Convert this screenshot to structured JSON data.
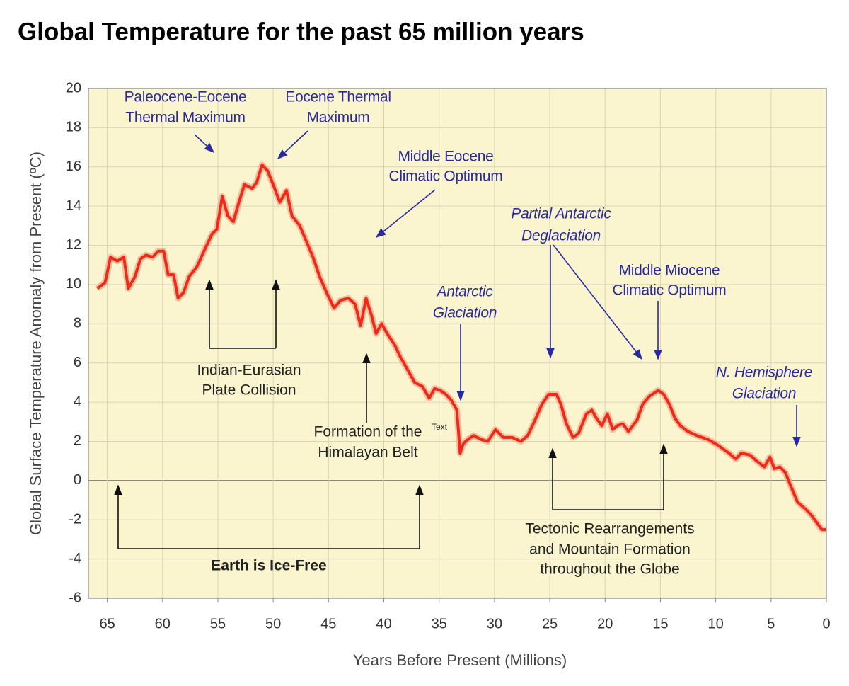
{
  "chart_data": {
    "type": "line",
    "title": "Global Temperature for the past 65 million years",
    "xlabel": "Years Before Present (Millions)",
    "ylabel": "Global Surface Temperature Anomaly from Present (ºC)",
    "color": "#ee2a1a",
    "band_color": "#eeaa88",
    "grid": true,
    "xlim": [
      66.7,
      0
    ],
    "xticks": [
      65,
      60,
      55,
      50,
      45,
      40,
      35,
      30,
      25,
      20,
      15,
      10,
      5,
      0
    ],
    "ylim": [
      -6,
      20
    ],
    "yticks": [
      -6,
      -4,
      -2,
      0,
      2,
      4,
      6,
      8,
      10,
      12,
      14,
      16,
      18,
      20
    ],
    "x": [
      65.9,
      65.2,
      64.7,
      64.1,
      63.5,
      63.1,
      62.5,
      62.0,
      61.5,
      60.9,
      60.4,
      59.9,
      59.5,
      59.0,
      58.6,
      58.1,
      57.6,
      56.9,
      56.1,
      55.5,
      55.1,
      54.6,
      54.1,
      53.6,
      53.1,
      52.6,
      51.9,
      51.5,
      51.0,
      50.5,
      50.0,
      49.4,
      48.8,
      48.3,
      47.6,
      47.0,
      46.4,
      45.8,
      45.1,
      44.5,
      43.9,
      43.2,
      42.6,
      42.1,
      41.6,
      41.1,
      40.7,
      40.2,
      39.7,
      39.0,
      38.5,
      37.9,
      37.2,
      36.5,
      35.9,
      35.4,
      34.9,
      34.4,
      33.9,
      33.4,
      33.1,
      32.8,
      32.4,
      31.9,
      31.2,
      30.6,
      29.9,
      29.2,
      28.4,
      27.6,
      27.0,
      26.4,
      25.7,
      25.1,
      24.4,
      24.0,
      23.5,
      22.9,
      22.4,
      21.7,
      21.2,
      20.8,
      20.3,
      19.8,
      19.3,
      18.9,
      18.4,
      17.9,
      17.1,
      16.6,
      16.0,
      15.2,
      14.7,
      14.2,
      13.7,
      13.2,
      12.5,
      11.7,
      10.7,
      9.8,
      8.8,
      8.2,
      7.7,
      6.9,
      6.3,
      5.6,
      5.1,
      4.7,
      4.2,
      3.7,
      3.2,
      2.6,
      1.8,
      1.3,
      0.8,
      0.4,
      0.0
    ],
    "values": [
      9.8,
      10.1,
      11.4,
      11.2,
      11.4,
      9.8,
      10.4,
      11.3,
      11.5,
      11.4,
      11.7,
      11.7,
      10.5,
      10.5,
      9.3,
      9.6,
      10.4,
      10.9,
      11.9,
      12.6,
      12.8,
      14.5,
      13.5,
      13.2,
      14.2,
      15.1,
      14.9,
      15.2,
      16.1,
      15.8,
      15.1,
      14.2,
      14.8,
      13.5,
      13.0,
      12.2,
      11.4,
      10.4,
      9.5,
      8.8,
      9.2,
      9.3,
      9.0,
      7.9,
      9.3,
      8.4,
      7.5,
      8.0,
      7.5,
      6.9,
      6.3,
      5.7,
      5.0,
      4.8,
      4.2,
      4.7,
      4.6,
      4.4,
      4.1,
      3.6,
      1.4,
      1.9,
      2.1,
      2.3,
      2.1,
      2.0,
      2.6,
      2.2,
      2.2,
      2.0,
      2.3,
      3.0,
      3.9,
      4.4,
      4.4,
      3.9,
      2.9,
      2.2,
      2.4,
      3.4,
      3.6,
      3.2,
      2.8,
      3.4,
      2.6,
      2.8,
      2.9,
      2.5,
      3.1,
      3.9,
      4.3,
      4.6,
      4.4,
      3.9,
      3.2,
      2.8,
      2.5,
      2.3,
      2.1,
      1.8,
      1.4,
      1.1,
      1.4,
      1.3,
      1.0,
      0.7,
      1.2,
      0.6,
      0.7,
      0.4,
      -0.3,
      -1.1,
      -1.5,
      -1.8,
      -2.2,
      -2.5,
      -2.5
    ],
    "annotations": [
      {
        "lines": [
          "Paleocene-Eocene",
          "Thermal Maximum"
        ]
      },
      {
        "lines": [
          "Eocene Thermal",
          "Maximum"
        ]
      },
      {
        "lines": [
          "Middle Eocene",
          "Climatic Optimum"
        ]
      },
      {
        "lines": [
          "Partial Antarctic",
          "Deglaciation"
        ]
      },
      {
        "lines": [
          "Middle Miocene",
          "Climatic Optimum"
        ]
      },
      {
        "lines": [
          "Antarctic",
          "Glaciation"
        ]
      },
      {
        "lines": [
          "N. Hemisphere",
          "Glaciation"
        ]
      },
      {
        "lines": [
          "Indian-Eurasian",
          "Plate Collision"
        ]
      },
      {
        "lines": [
          "Formation of the",
          "Himalayan Belt"
        ],
        "mark": "Text"
      },
      {
        "lines": [
          "Tectonic Rearrangements",
          "and Mountain Formation",
          "throughout the Globe"
        ]
      },
      {
        "lines": [
          "Earth is Ice-Free"
        ]
      }
    ]
  }
}
